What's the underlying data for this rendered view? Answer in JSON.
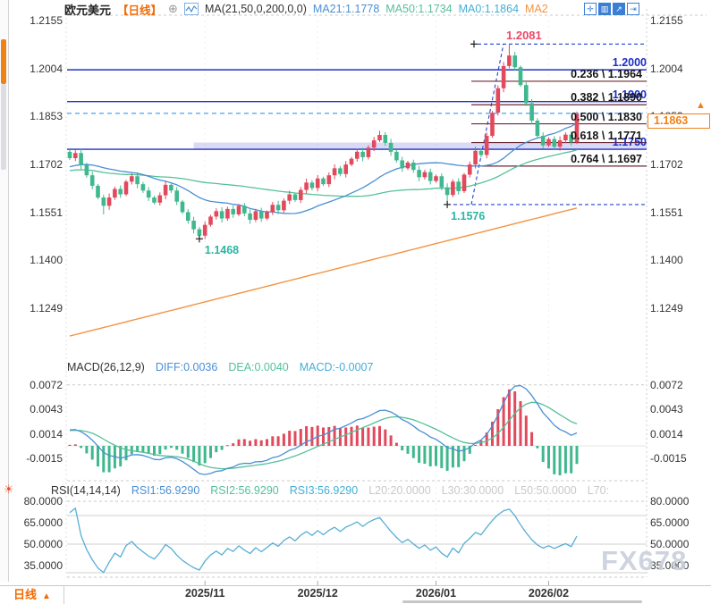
{
  "header": {
    "title": "欧元美元",
    "period": "【日线】",
    "add_icon": "⊕",
    "ma_settings": "MA(21,50,0,200,0,0)",
    "ma_values": [
      {
        "label": "MA21:1.1778",
        "color": "#4a8fd4"
      },
      {
        "label": "MA50:1.1734",
        "color": "#55c09a"
      },
      {
        "label": "MA0:1.1864",
        "color": "#45aed6"
      },
      {
        "label": "MA2",
        "color": "#f5923e"
      }
    ]
  },
  "toolbar": {
    "icons": [
      {
        "name": "crosshair-icon",
        "glyph": "✛"
      },
      {
        "name": "fit-screen-icon",
        "glyph": "▥"
      },
      {
        "name": "arrow-tool-icon",
        "glyph": "↗"
      },
      {
        "name": "exit-icon",
        "glyph": "⇥"
      }
    ]
  },
  "macd_header": {
    "name": "MACD(26,12,9)",
    "diff": "DIFF:0.0036",
    "dea": "DEA:0.0040",
    "macd": "MACD:-0.0007"
  },
  "rsi_header": {
    "name": "RSI(14,14,14)",
    "rsi1": "RSI1:56.9290",
    "rsi2": "RSI2:56.9290",
    "rsi3": "RSI3:56.9290",
    "l20": "L20:20.0000",
    "l30": "L30:30.0000",
    "l50": "L50:50.0000",
    "l70": "L70:"
  },
  "bottom": {
    "tab_label": "日线",
    "tab_arrow": "▲",
    "watermark": "FX678"
  },
  "chart_data": {
    "type": "candlestick",
    "symbol": "欧元美元",
    "timeframe": "日线",
    "panels": [
      "price",
      "MACD",
      "RSI"
    ],
    "price_axis_labels": [
      "1.2155",
      "1.2004",
      "1.1853",
      "1.1702",
      "1.1551",
      "1.1400",
      "1.1249"
    ],
    "macd_axis_labels": [
      "0.0072",
      "0.0043",
      "0.0014",
      "-0.0015"
    ],
    "rsi_axis_labels": [
      "80.0000",
      "65.0000",
      "50.0000",
      "35.0000"
    ],
    "x_ticks": [
      {
        "label": "2025/11",
        "index": 24
      },
      {
        "label": "2025/12",
        "index": 44
      },
      {
        "label": "2026/01",
        "index": 65
      },
      {
        "label": "2026/02",
        "index": 85
      }
    ],
    "candles": {
      "first_open": 1.1742,
      "closes": [
        1.1722,
        1.1738,
        1.17,
        1.1668,
        1.1635,
        1.1598,
        1.1572,
        1.1598,
        1.1625,
        1.1608,
        1.1648,
        1.1665,
        1.164,
        1.162,
        1.1598,
        1.1582,
        1.1605,
        1.1638,
        1.162,
        1.1585,
        1.1552,
        1.1525,
        1.1498,
        1.1478,
        1.1512,
        1.1538,
        1.1555,
        1.1532,
        1.1562,
        1.1545,
        1.1572,
        1.1548,
        1.1528,
        1.1555,
        1.1532,
        1.1552,
        1.1575,
        1.1558,
        1.1588,
        1.1608,
        1.159,
        1.1622,
        1.1645,
        1.1628,
        1.1658,
        1.164,
        1.1668,
        1.169,
        1.1672,
        1.1702,
        1.172,
        1.1742,
        1.1725,
        1.1755,
        1.1778,
        1.1795,
        1.177,
        1.1742,
        1.1715,
        1.169,
        1.1708,
        1.1685,
        1.1662,
        1.1678,
        1.165,
        1.1665,
        1.163,
        1.1606,
        1.1648,
        1.1618,
        1.167,
        1.1702,
        1.1745,
        1.1732,
        1.1792,
        1.1865,
        1.1942,
        1.2012,
        1.2045,
        1.2008,
        1.1952,
        1.1895,
        1.184,
        1.1792,
        1.1762,
        1.1782,
        1.1758,
        1.1778,
        1.1796,
        1.1772,
        1.1863
      ],
      "overrides": {
        "6": {
          "l": 1.1545
        },
        "23": {
          "l": 1.1468
        },
        "55": {
          "h": 1.1808
        },
        "67": {
          "l": 1.1576
        },
        "78": {
          "h": 1.2081
        }
      }
    },
    "ma200": {
      "start": 1.1162,
      "end": 1.1565
    },
    "h_lines": [
      {
        "price": 1.2,
        "label": "1.2000"
      },
      {
        "price": 1.19,
        "label": "1.1900"
      },
      {
        "price": 1.175,
        "label": "1.1750"
      }
    ],
    "zone": {
      "from_index": 22,
      "price_top": 1.1771,
      "price_bottom": 1.1751
    },
    "fib": {
      "high_price": 1.2081,
      "high_label": "1.2081",
      "low_price": 1.1576,
      "levels": [
        {
          "label": "0.236 \\ 1.1964",
          "price": 1.1964
        },
        {
          "label": "0.382 \\ 1.1890",
          "price": 1.189
        },
        {
          "label": "0.500 \\ 1.1830",
          "price": 1.183
        },
        {
          "label": "0.618 \\ 1.1771",
          "price": 1.1771
        },
        {
          "label": "0.764 \\ 1.1697",
          "price": 1.1697
        }
      ]
    },
    "annotations": [
      {
        "text": "1.1468",
        "index": 23,
        "price": 1.1468,
        "placement": "below-right"
      },
      {
        "text": "1.1576",
        "index": 67,
        "price": 1.1576,
        "placement": "below"
      }
    ],
    "current_price": {
      "label": "1.1863",
      "price": 1.1863
    },
    "colors": {
      "up": "#e2495c",
      "down": "#3fb88d",
      "ma21": "#4a8fd4",
      "ma50": "#55c09a",
      "ma200": "#f5923e",
      "rsi": "#56aed6",
      "level_blue": "#2230c8",
      "fib_line": "#6d2a35",
      "fib_dashed": "#2244cc",
      "price_line": "#4aa0e8",
      "accent_orange": "#f08119",
      "annotation": "#2ab5a5",
      "high_label": "#e9486b",
      "watermark": "#c9cfdc"
    }
  }
}
